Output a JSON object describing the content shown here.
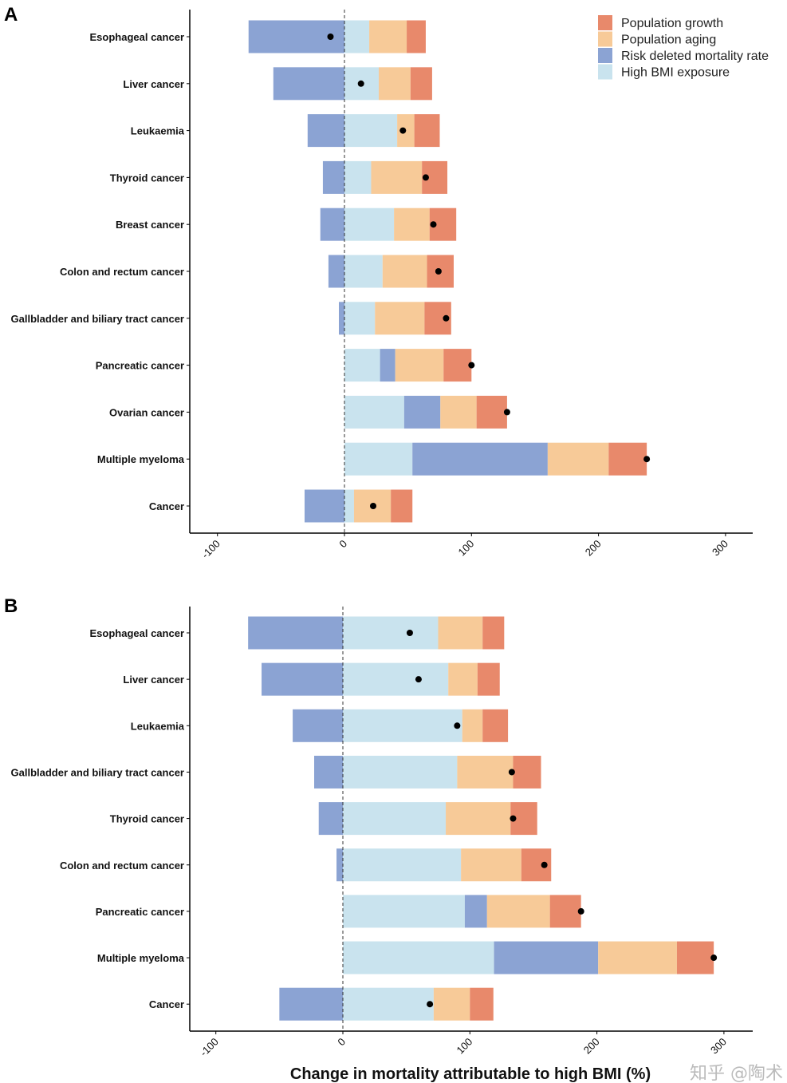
{
  "chart_data": {
    "type": "bar",
    "orientation": "horizontal-stacked",
    "xlabel": "Change in mortality attributable to high BMI (%)",
    "xlim": [
      -122,
      322
    ],
    "xticks": [
      -100,
      0,
      100,
      200,
      300
    ],
    "legend": {
      "placement": "top-right",
      "entries": [
        {
          "key": "growth",
          "label": "Population growth",
          "color": "#E8896B"
        },
        {
          "key": "aging",
          "label": "Population aging",
          "color": "#F7CA98"
        },
        {
          "key": "risk",
          "label": "Risk deleted mortality rate",
          "color": "#8BA3D3"
        },
        {
          "key": "bmi",
          "label": "High BMI exposure",
          "color": "#C9E3EE"
        }
      ]
    },
    "panels": [
      {
        "label": "A",
        "categories": [
          "Esophageal cancer",
          "Liver cancer",
          "Leukaemia",
          "Thyroid cancer",
          "Breast cancer",
          "Colon and rectum cancer",
          "Gallbladder and biliary tract cancer",
          "Pancreatic cancer",
          "Ovarian cancer",
          "Multiple myeloma",
          "Cancer"
        ],
        "series": [
          {
            "name": "High BMI exposure",
            "key": "bmi",
            "values": [
              19.5,
              27,
              41.5,
              21,
              39,
              30,
              24,
              28,
              47,
              53.5,
              7.5
            ]
          },
          {
            "name": "Risk deleted mortality rate",
            "key": "risk",
            "values": [
              -75.5,
              -56,
              -29,
              -17,
              -19,
              -12.6,
              -4.4,
              12,
              28.5,
              106.5,
              -31.4
            ]
          },
          {
            "name": "Population aging",
            "key": "aging",
            "values": [
              29.5,
              25,
              13.5,
              40,
              28,
              35,
              39,
              38,
              28.5,
              48,
              29
            ]
          },
          {
            "name": "Population growth",
            "key": "growth",
            "values": [
              15,
              17,
              20,
              20,
              21,
              21,
              21,
              22,
              24,
              30,
              17
            ]
          }
        ],
        "total": [
          -11,
          13,
          46,
          64,
          70,
          74,
          80,
          100,
          128,
          238,
          22.6
        ]
      },
      {
        "label": "B",
        "categories": [
          "Esophageal cancer",
          "Liver cancer",
          "Leukaemia",
          "Gallbladder and biliary tract cancer",
          "Thyroid cancer",
          "Colon and rectum cancer",
          "Pancreatic cancer",
          "Multiple myeloma",
          "Cancer"
        ],
        "series": [
          {
            "name": "High BMI exposure",
            "key": "bmi",
            "values": [
              75,
              83,
              94,
              90,
              81,
              93,
              96,
              119,
              71.5
            ]
          },
          {
            "name": "Risk deleted mortality rate",
            "key": "risk",
            "values": [
              -74.6,
              -64,
              -39.5,
              -22.6,
              -19,
              -5,
              17.5,
              82,
              -50
            ]
          },
          {
            "name": "Population aging",
            "key": "aging",
            "values": [
              35,
              23,
              16,
              44,
              51,
              47.5,
              49.5,
              62,
              28.5
            ]
          },
          {
            "name": "Population growth",
            "key": "growth",
            "values": [
              17,
              17.5,
              20,
              22,
              21,
              23.5,
              24.5,
              29,
              18.5
            ]
          }
        ],
        "total": [
          52.7,
          59.6,
          90,
          133,
          134,
          158.6,
          187.5,
          292,
          68.5
        ]
      }
    ]
  },
  "watermark": "知乎 @陶术"
}
